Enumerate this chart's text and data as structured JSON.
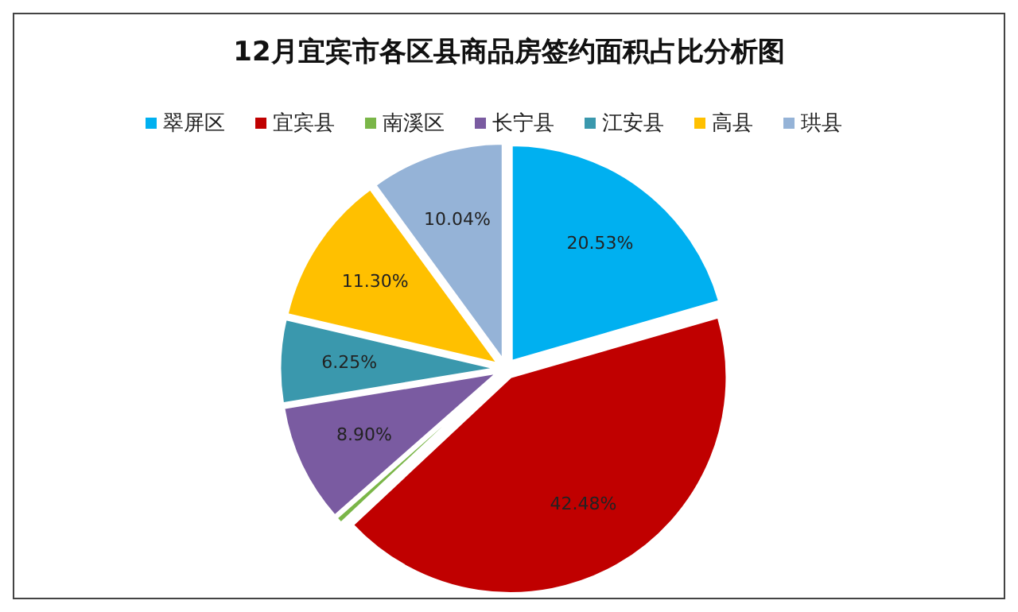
{
  "chart_data": {
    "type": "pie",
    "title": "12月宜宾市各区县商品房签约面积占比分析图",
    "categories": [
      "翠屏区",
      "宜宾县",
      "南溪区",
      "长宁县",
      "江安县",
      "高县",
      "珙县"
    ],
    "values": [
      20.53,
      42.48,
      0.5,
      8.9,
      6.25,
      11.3,
      10.04
    ],
    "colors": [
      "#00b0f0",
      "#c00000",
      "#7ab648",
      "#7a5ba1",
      "#3a98ad",
      "#ffc000",
      "#95b3d7"
    ],
    "value_labels": [
      "20.53%",
      "42.48%",
      null,
      "8.90%",
      "6.25%",
      "11.30%",
      "10.04%"
    ],
    "legend": "top"
  }
}
